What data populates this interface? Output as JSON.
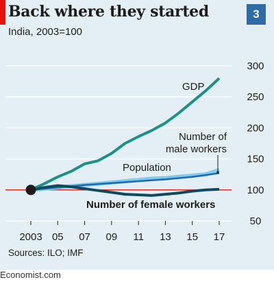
{
  "header": {
    "title": "Back where they started",
    "subtitle": "India, 2003=100",
    "chart_number": "3"
  },
  "footer": {
    "source": "Sources: ILO; IMF",
    "site": "Economist.com"
  },
  "colors": {
    "background": "#e4eff5",
    "gdp": "#1b9183",
    "population": "#7fcbee",
    "male_workers": "#1e6aa8",
    "female_workers": "#0f4a5e",
    "baseline": "#e3120b",
    "grid": "#ffffff",
    "marker": "#1c1c1c"
  },
  "chart_data": {
    "type": "line",
    "title": "Back where they started",
    "subtitle": "India, 2003=100",
    "xlabel": "",
    "ylabel": "",
    "x_range": [
      2003,
      2017
    ],
    "ylim": [
      50,
      300
    ],
    "x_ticks": [
      2003,
      2005,
      2007,
      2009,
      2011,
      2013,
      2015,
      2017
    ],
    "x_tick_labels": [
      "2003",
      "05",
      "07",
      "09",
      "11",
      "13",
      "15",
      "17"
    ],
    "y_ticks": [
      50,
      100,
      150,
      200,
      250,
      300
    ],
    "y_tick_labels": [
      "50",
      "100",
      "150",
      "200",
      "250",
      "300"
    ],
    "baseline": 100,
    "grid": true,
    "legend": "inline labels",
    "series": [
      {
        "name": "GDP",
        "key": "gdp",
        "points": [
          [
            2003,
            100
          ],
          [
            2004,
            110
          ],
          [
            2005,
            121
          ],
          [
            2006,
            130
          ],
          [
            2007,
            142
          ],
          [
            2008,
            147
          ],
          [
            2009,
            159
          ],
          [
            2010,
            175
          ],
          [
            2011,
            186
          ],
          [
            2012,
            196
          ],
          [
            2013,
            208
          ],
          [
            2014,
            224
          ],
          [
            2015,
            242
          ],
          [
            2016,
            260
          ],
          [
            2017,
            280
          ]
        ]
      },
      {
        "name": "Population",
        "key": "population",
        "points": [
          [
            2003,
            100
          ],
          [
            2004,
            102
          ],
          [
            2005,
            104
          ],
          [
            2006,
            106
          ],
          [
            2007,
            108
          ],
          [
            2008,
            110
          ],
          [
            2009,
            112
          ],
          [
            2010,
            114
          ],
          [
            2011,
            116
          ],
          [
            2012,
            118
          ],
          [
            2013,
            119
          ],
          [
            2014,
            121
          ],
          [
            2015,
            123
          ],
          [
            2016,
            125
          ],
          [
            2017,
            132
          ]
        ]
      },
      {
        "name": "Number of male workers",
        "key": "male_workers",
        "points": [
          [
            2003,
            100
          ],
          [
            2005,
            104
          ],
          [
            2007,
            108
          ],
          [
            2009,
            111
          ],
          [
            2011,
            114
          ],
          [
            2013,
            117
          ],
          [
            2015,
            121
          ],
          [
            2017,
            127
          ]
        ]
      },
      {
        "name": "Number of female workers",
        "key": "female_workers",
        "points": [
          [
            2003,
            100
          ],
          [
            2004,
            104
          ],
          [
            2005,
            107
          ],
          [
            2006,
            105
          ],
          [
            2007,
            102
          ],
          [
            2008,
            99
          ],
          [
            2009,
            96
          ],
          [
            2010,
            93
          ],
          [
            2011,
            92
          ],
          [
            2012,
            91
          ],
          [
            2013,
            93
          ],
          [
            2014,
            95
          ],
          [
            2015,
            98
          ],
          [
            2016,
            100
          ],
          [
            2017,
            101
          ]
        ]
      }
    ],
    "labels": {
      "gdp": "GDP",
      "population": "Population",
      "male_workers_line1": "Number of",
      "male_workers_line2": "male workers",
      "female_workers": "Number of female workers"
    }
  }
}
